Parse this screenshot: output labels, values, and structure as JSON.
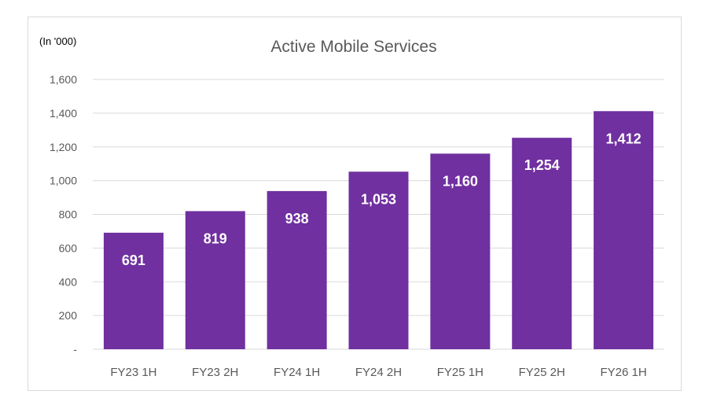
{
  "chart_data": {
    "type": "bar",
    "title": "Active Mobile Services",
    "unit_note": "(In '000)",
    "categories": [
      "FY23 1H",
      "FY23 2H",
      "FY24 1H",
      "FY24 2H",
      "FY25 1H",
      "FY25 2H",
      "FY26 1H"
    ],
    "values": [
      691,
      819,
      938,
      1053,
      1160,
      1254,
      1412
    ],
    "value_labels": [
      "691",
      "819",
      "938",
      "1,053",
      "1,160",
      "1,254",
      "1,412"
    ],
    "ylim": [
      0,
      1600
    ],
    "yticks": [
      0,
      200,
      400,
      600,
      800,
      1000,
      1200,
      1400,
      1600
    ],
    "ytick_labels": [
      "-",
      "200",
      "400",
      "600",
      "800",
      "1,000",
      "1,200",
      "1,400",
      "1,600"
    ],
    "grid": true,
    "legend": "none",
    "colors": {
      "bar": "#7030a0",
      "grid": "#d9d9d9",
      "axis_text": "#595959",
      "data_label": "#ffffff"
    }
  }
}
